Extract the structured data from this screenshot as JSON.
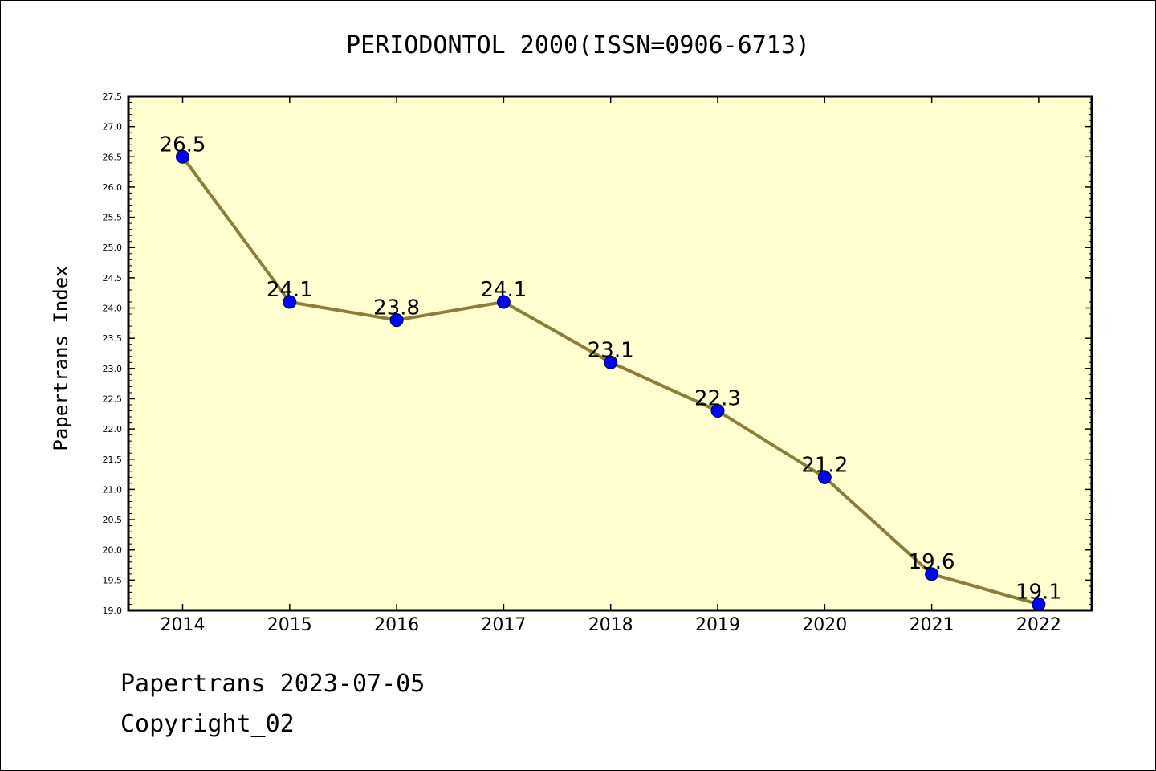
{
  "chart_data": {
    "type": "line",
    "title": "PERIODONTOL 2000(ISSN=0906-6713)",
    "xlabel": "",
    "ylabel": "Papertrans Index",
    "categories": [
      "2014",
      "2015",
      "2016",
      "2017",
      "2018",
      "2019",
      "2020",
      "2021",
      "2022"
    ],
    "values": [
      26.5,
      24.1,
      23.8,
      24.1,
      23.1,
      22.3,
      21.2,
      19.6,
      19.1
    ],
    "data_labels": [
      "26.5",
      "24.1",
      "23.8",
      "24.1",
      "23.1",
      "22.3",
      "21.2",
      "19.6",
      "19.1"
    ],
    "ylim": [
      19.0,
      27.5
    ],
    "yticks": [
      "19.0",
      "19.5",
      "20.0",
      "20.5",
      "21.0",
      "21.5",
      "22.0",
      "22.5",
      "23.0",
      "23.5",
      "24.0",
      "24.5",
      "25.0",
      "25.5",
      "26.0",
      "26.5",
      "27.0",
      "27.5"
    ],
    "grid": false,
    "colors": {
      "plot_background": "#ffffd0",
      "line": "#8b7d3a",
      "marker": "#0000ff"
    }
  },
  "footer": {
    "line1": "Papertrans 2023-07-05",
    "line2": "Copyright_02"
  }
}
